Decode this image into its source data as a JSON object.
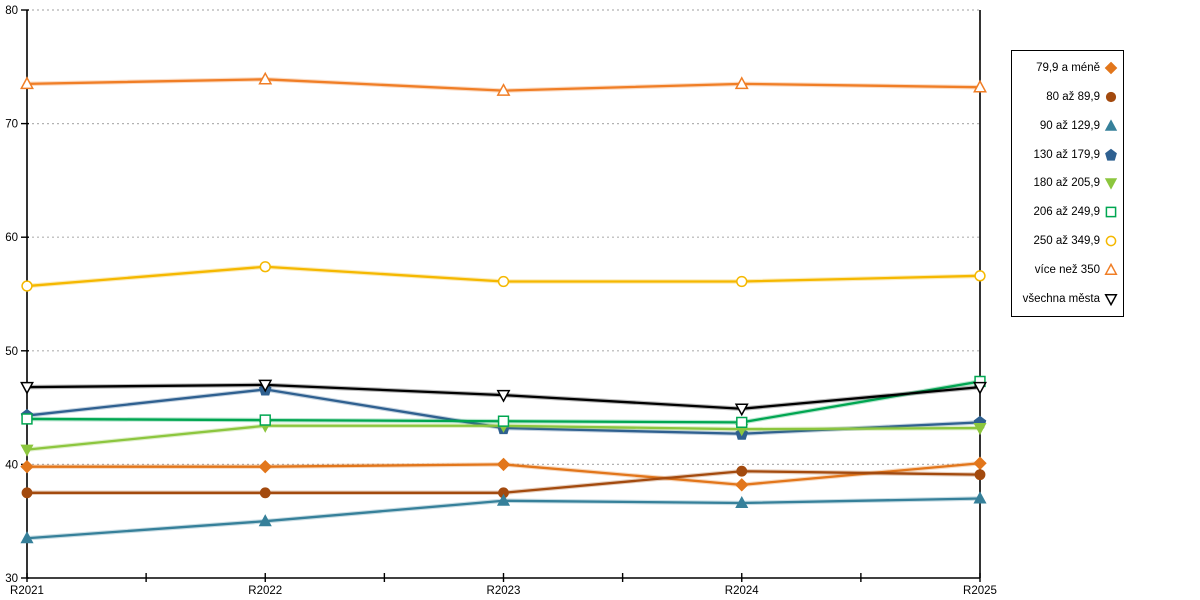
{
  "chart_data": {
    "type": "line",
    "title": "",
    "xlabel": "",
    "ylabel": "",
    "x_categories": [
      "R2021",
      "R2022",
      "R2023",
      "R2024",
      "R2025"
    ],
    "y_axis": {
      "min": 30,
      "max": 80,
      "step": 10,
      "tick_labels": [
        "30",
        "40",
        "50",
        "60",
        "70",
        "80"
      ]
    },
    "grid": "horizontal-dotted",
    "gridline_color": "#b2b2b2",
    "axis_color": "#000000",
    "legend_position": "right",
    "right_boundary_at": "R2025",
    "series": [
      {
        "name": "79,9 a méně",
        "marker": "diamond",
        "fill": "filled",
        "color": "#E2761B",
        "values": [
          39.8,
          39.8,
          40.0,
          38.2,
          40.1
        ]
      },
      {
        "name": "80 až 89,9",
        "marker": "circle",
        "fill": "filled",
        "color": "#A34A0E",
        "values": [
          37.5,
          37.5,
          37.5,
          39.4,
          39.1
        ]
      },
      {
        "name": "90 až 129,9",
        "marker": "triangle-up",
        "fill": "filled",
        "color": "#36809A",
        "values": [
          33.5,
          35.0,
          36.8,
          36.6,
          37.0
        ]
      },
      {
        "name": "130 až 179,9",
        "marker": "pentagon",
        "fill": "filled",
        "color": "#2F6090",
        "values": [
          44.3,
          46.6,
          43.2,
          42.7,
          43.7
        ]
      },
      {
        "name": "180 až 205,9",
        "marker": "triangle-down",
        "fill": "filled",
        "color": "#8CC63E",
        "values": [
          41.3,
          43.4,
          43.4,
          43.1,
          43.2
        ]
      },
      {
        "name": "206 až 249,9",
        "marker": "square",
        "fill": "open",
        "color": "#00A651",
        "values": [
          44.0,
          43.9,
          43.8,
          43.7,
          47.3
        ]
      },
      {
        "name": "250 až 349,9",
        "marker": "circle",
        "fill": "open",
        "color": "#F5B800",
        "values": [
          55.7,
          57.4,
          56.1,
          56.1,
          56.6
        ]
      },
      {
        "name": "více než 350",
        "marker": "triangle-up",
        "fill": "open",
        "color": "#F07E26",
        "values": [
          73.5,
          73.9,
          72.9,
          73.5,
          73.2
        ]
      },
      {
        "name": "všechna města",
        "marker": "triangle-down",
        "fill": "open",
        "color": "#000000",
        "values": [
          46.8,
          47.0,
          46.1,
          44.9,
          46.8
        ]
      }
    ]
  }
}
